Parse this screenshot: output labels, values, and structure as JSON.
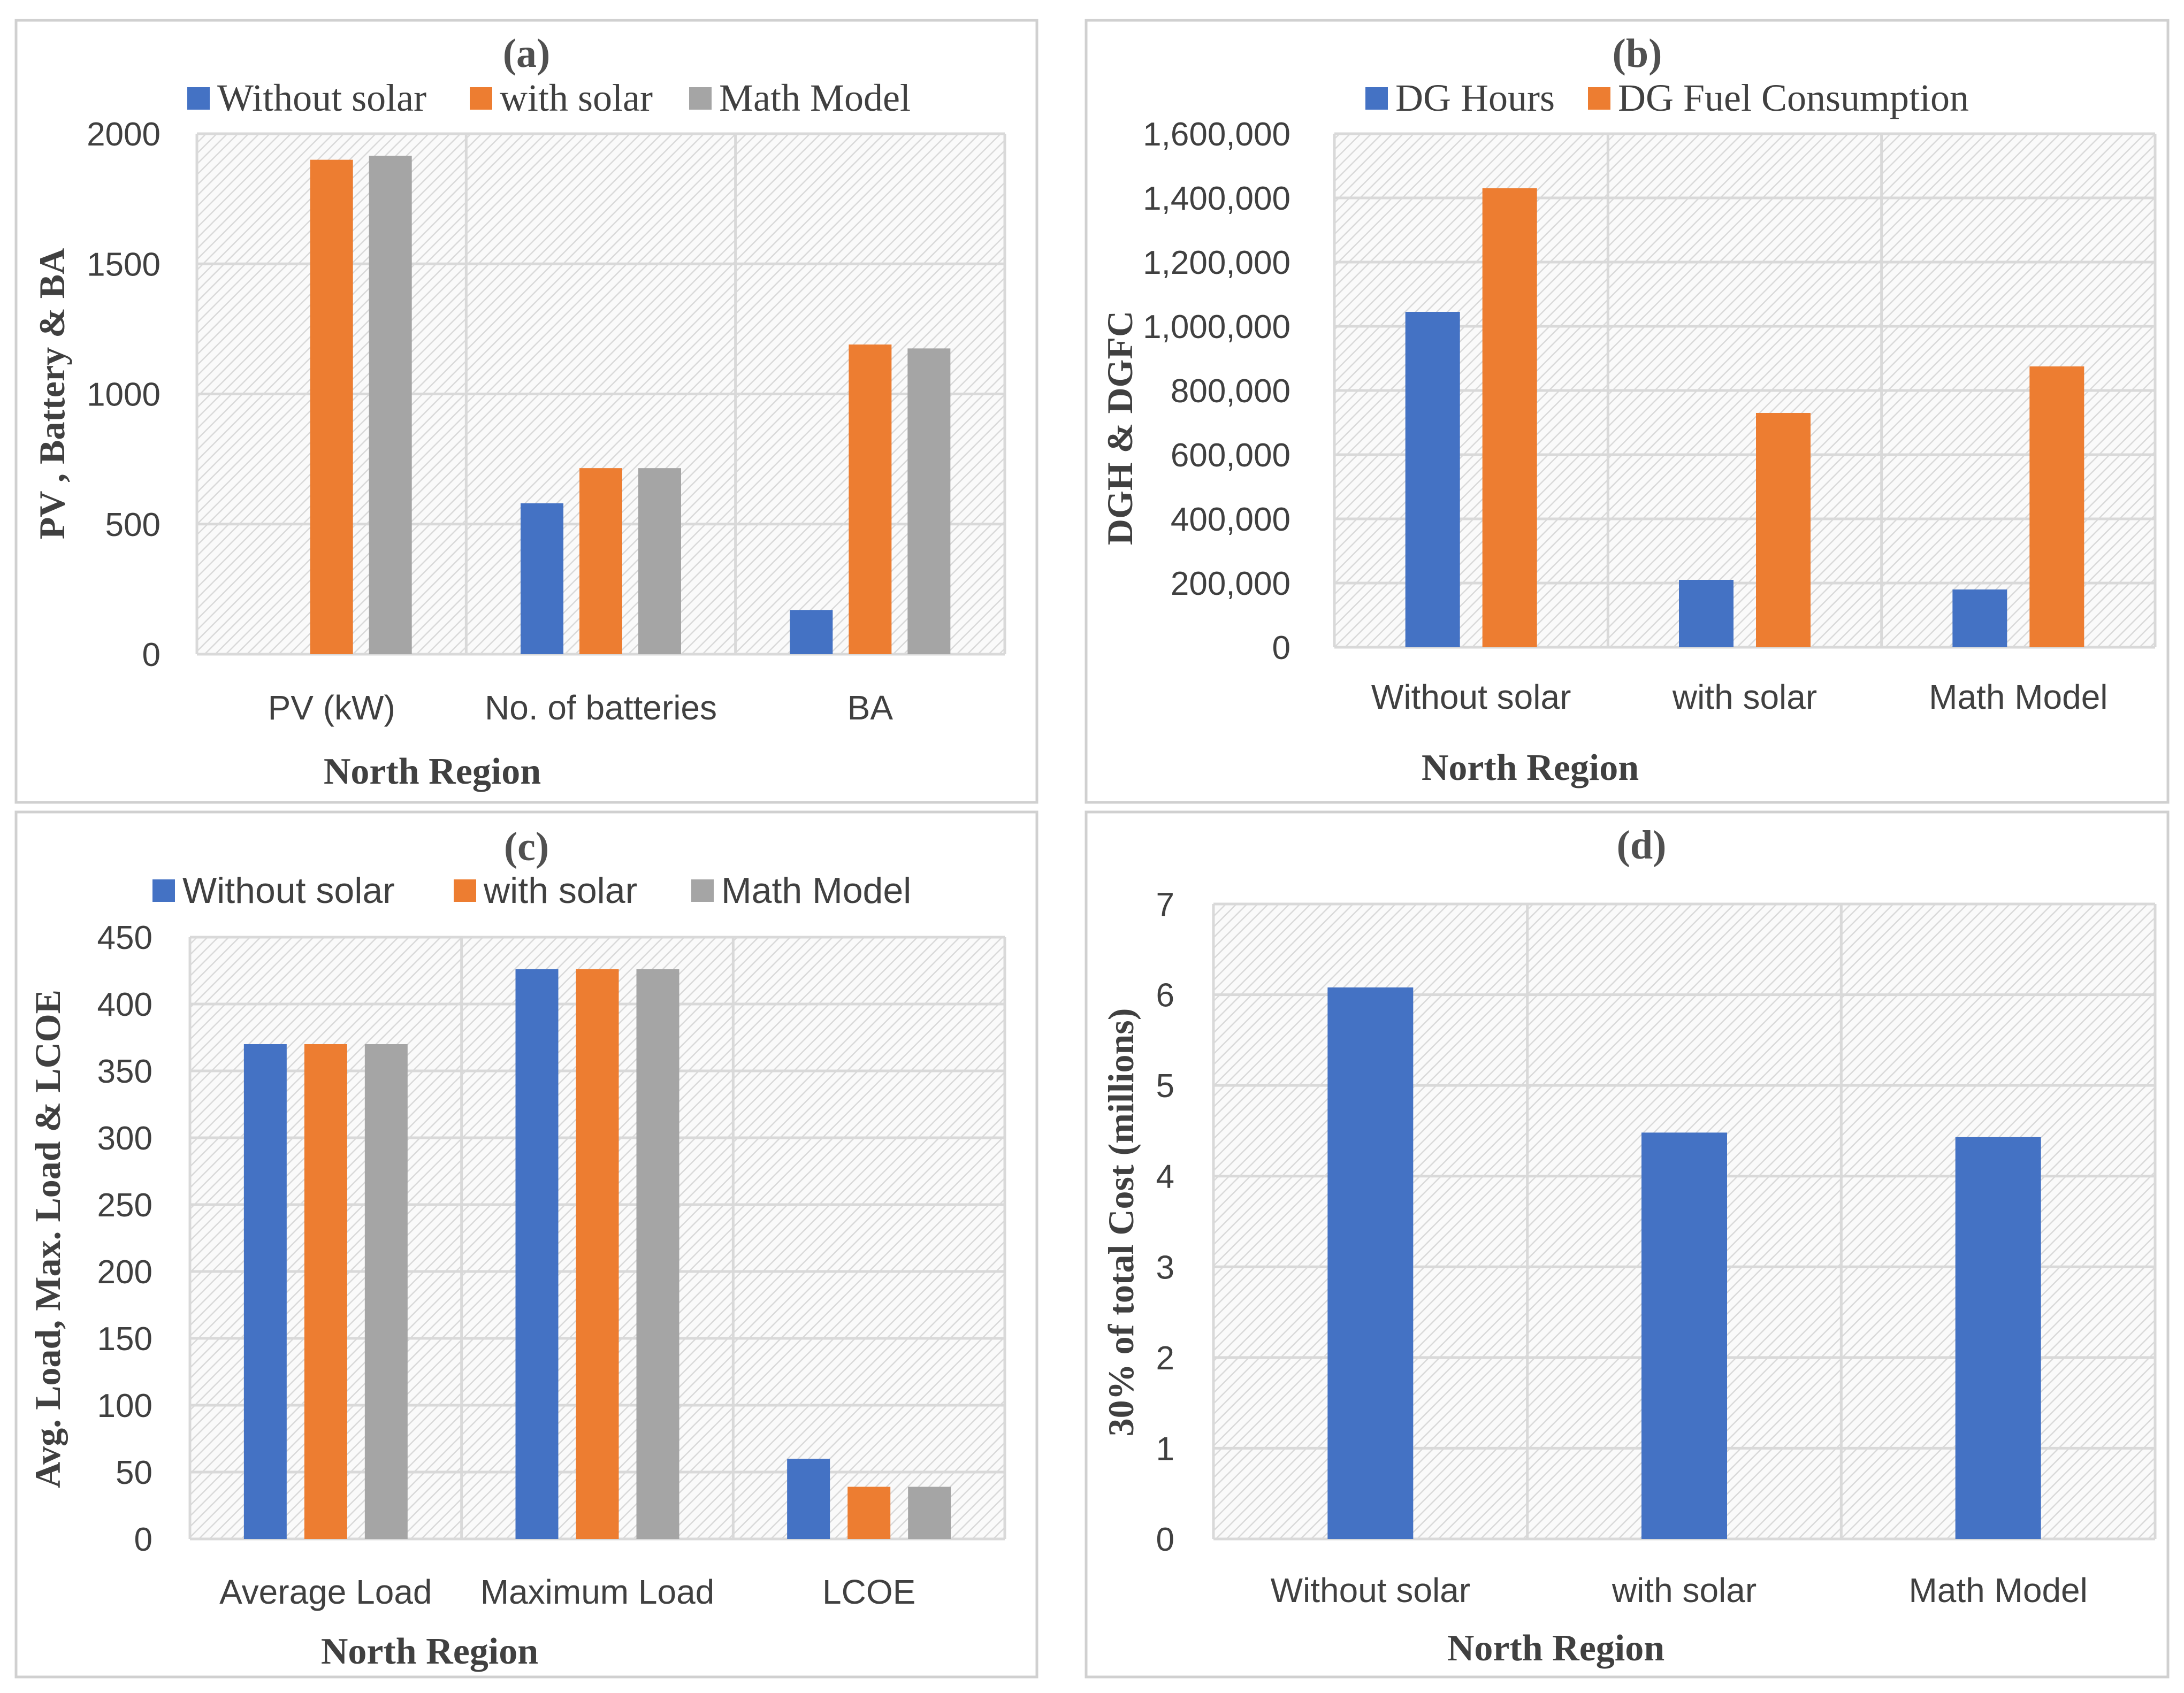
{
  "chart_data": [
    {
      "type": "bar",
      "title": "(a)",
      "categories": [
        "PV (kW)",
        "No. of batteries",
        "BA"
      ],
      "series": [
        {
          "name": "Without solar",
          "color": "#4472C4",
          "values": [
            0,
            580,
            170
          ]
        },
        {
          "name": "with solar",
          "color": "#ED7D31",
          "values": [
            1900,
            715,
            1190
          ]
        },
        {
          "name": "Math Model",
          "color": "#A5A5A5",
          "values": [
            1915,
            715,
            1175
          ]
        }
      ],
      "xlabel": "North Region",
      "ylabel": "PV , Battery & BA",
      "ylim": [
        0,
        2000
      ],
      "yticks": [
        0,
        500,
        1000,
        1500,
        2000
      ],
      "ytick_labels": [
        "0",
        "500",
        "1000",
        "1500",
        "2000"
      ],
      "legend": "top",
      "grid": true
    },
    {
      "type": "bar",
      "title": "(b)",
      "categories": [
        "Without solar",
        "with solar",
        "Math Model"
      ],
      "series": [
        {
          "name": "DG Hours",
          "color": "#4472C4",
          "values": [
            1045000,
            210000,
            180000
          ]
        },
        {
          "name": "DG Fuel Consumption",
          "color": "#ED7D31",
          "values": [
            1430000,
            730000,
            875000
          ]
        }
      ],
      "xlabel": "North Region",
      "ylabel": "DGH & DGFC",
      "ylim": [
        0,
        1600000
      ],
      "yticks": [
        0,
        200000,
        400000,
        600000,
        800000,
        1000000,
        1200000,
        1400000,
        1600000
      ],
      "ytick_labels": [
        "0",
        "200,000",
        "400,000",
        "600,000",
        "800,000",
        "1,000,000",
        "1,200,000",
        "1,400,000",
        "1,600,000"
      ],
      "legend": "top",
      "grid": true
    },
    {
      "type": "bar",
      "title": "(c)",
      "categories": [
        "Average Load",
        "Maximum Load",
        "LCOE"
      ],
      "series": [
        {
          "name": "Without solar",
          "color": "#4472C4",
          "values": [
            370,
            426,
            60
          ]
        },
        {
          "name": "with solar",
          "color": "#ED7D31",
          "values": [
            370,
            426,
            39
          ]
        },
        {
          "name": "Math Model",
          "color": "#A5A5A5",
          "values": [
            370,
            426,
            39
          ]
        }
      ],
      "xlabel": "North Region",
      "ylabel": "Avg. Load, Max. Load & LCOE",
      "ylim": [
        0,
        450
      ],
      "yticks": [
        0,
        50,
        100,
        150,
        200,
        250,
        300,
        350,
        400,
        450
      ],
      "ytick_labels": [
        "0",
        "50",
        "100",
        "150",
        "200",
        "250",
        "300",
        "350",
        "400",
        "450"
      ],
      "legend": "top",
      "grid": true
    },
    {
      "type": "bar",
      "title": "(d)",
      "categories": [
        "Without solar",
        "with solar",
        "Math Model"
      ],
      "series": [
        {
          "name": "30% of total Cost (millions)",
          "color": "#4472C4",
          "values": [
            6.08,
            4.48,
            4.43
          ]
        }
      ],
      "xlabel": "North Region",
      "ylabel": "30% of total Cost (millions)",
      "ylim": [
        0,
        7
      ],
      "yticks": [
        0,
        1,
        2,
        3,
        4,
        5,
        6,
        7
      ],
      "ytick_labels": [
        "0",
        "1",
        "2",
        "3",
        "4",
        "5",
        "6",
        "7"
      ],
      "legend": "none",
      "grid": true
    }
  ]
}
